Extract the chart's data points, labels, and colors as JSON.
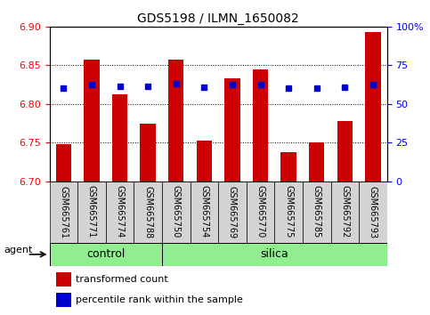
{
  "title": "GDS5198 / ILMN_1650082",
  "samples": [
    "GSM665761",
    "GSM665771",
    "GSM665774",
    "GSM665788",
    "GSM665750",
    "GSM665754",
    "GSM665769",
    "GSM665770",
    "GSM665775",
    "GSM665785",
    "GSM665792",
    "GSM665793"
  ],
  "bar_values": [
    6.748,
    6.858,
    6.812,
    6.775,
    6.858,
    6.752,
    6.833,
    6.845,
    6.738,
    6.75,
    6.778,
    6.893
  ],
  "percentile_values": [
    6.821,
    6.825,
    6.823,
    6.823,
    6.826,
    6.822,
    6.825,
    6.825,
    6.821,
    6.821,
    6.822,
    6.825
  ],
  "ylim_left": [
    6.7,
    6.9
  ],
  "ylim_right": [
    0,
    100
  ],
  "yticks_left": [
    6.7,
    6.75,
    6.8,
    6.85,
    6.9
  ],
  "yticks_right": [
    0,
    25,
    50,
    75,
    100
  ],
  "ytick_labels_right": [
    "0",
    "25",
    "50",
    "75",
    "100%"
  ],
  "bar_color": "#cc0000",
  "marker_color": "#0000cc",
  "bar_bottom": 6.7,
  "control_count": 4,
  "agent_label": "agent",
  "legend_bar_label": "transformed count",
  "legend_marker_label": "percentile rank within the sample",
  "title_fontsize": 10,
  "tick_fontsize": 8,
  "label_fontsize": 7,
  "group_fontsize": 9,
  "bar_width": 0.55,
  "gray_color": "#d3d3d3",
  "green_color": "#90ee90"
}
